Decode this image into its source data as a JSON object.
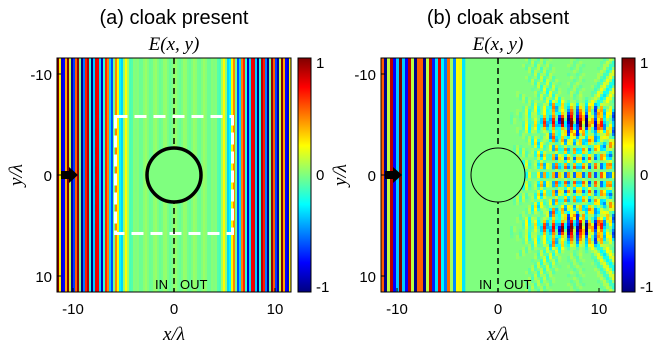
{
  "chart_data": [
    {
      "type": "heatmap",
      "panel_label": "(a) cloak present",
      "title": "E(x, y)",
      "xlabel": "x/λ",
      "ylabel": "y/λ",
      "xlim": [
        -12,
        12
      ],
      "ylim": [
        12,
        -12
      ],
      "xticks": [
        -10,
        0,
        10
      ],
      "yticks": [
        -10,
        0,
        10
      ],
      "colorbar": {
        "range": [
          -1,
          1
        ],
        "ticks": [
          1,
          0,
          -1
        ],
        "colormap": "jet"
      },
      "field": "plane wave traveling in +x, undisturbed outside cloak",
      "annotations": {
        "in_label": "IN",
        "out_label": "OUT",
        "interface_x": 0,
        "circle": {
          "center": [
            0,
            0
          ],
          "radius": 2.7,
          "style": "thick black"
        },
        "dashed_box": {
          "x": [
            -6,
            6
          ],
          "y": [
            -6,
            6
          ],
          "color": "#ffffff"
        },
        "source_arrow_at": [
          -11.3,
          0
        ]
      }
    },
    {
      "type": "heatmap",
      "panel_label": "(b) cloak absent",
      "title": "E(x, y)",
      "xlabel": "x/λ",
      "ylabel": "y/λ",
      "xlim": [
        -12,
        12
      ],
      "ylim": [
        12,
        -12
      ],
      "xticks": [
        -10,
        0,
        10
      ],
      "yticks": [
        -10,
        0,
        10
      ],
      "colorbar": {
        "range": [
          -1,
          1
        ],
        "ticks": [
          1,
          0,
          -1
        ],
        "colormap": "jet"
      },
      "field": "plane wave refracted by slab and scattered by object; focal spots near y=±5 on right side",
      "annotations": {
        "in_label": "IN",
        "out_label": "OUT",
        "interface_x": 0,
        "circle": {
          "center": [
            0,
            0
          ],
          "radius": 2.7,
          "style": "thin black"
        },
        "source_arrow_at": [
          -11.3,
          0
        ]
      }
    }
  ]
}
